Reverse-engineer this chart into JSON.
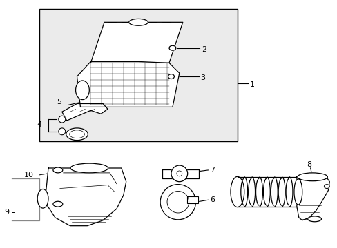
{
  "bg_color": "#ffffff",
  "box_fill": "#ebebeb",
  "line_color": "#000000",
  "label_color": "#000000",
  "fs": 8.0
}
